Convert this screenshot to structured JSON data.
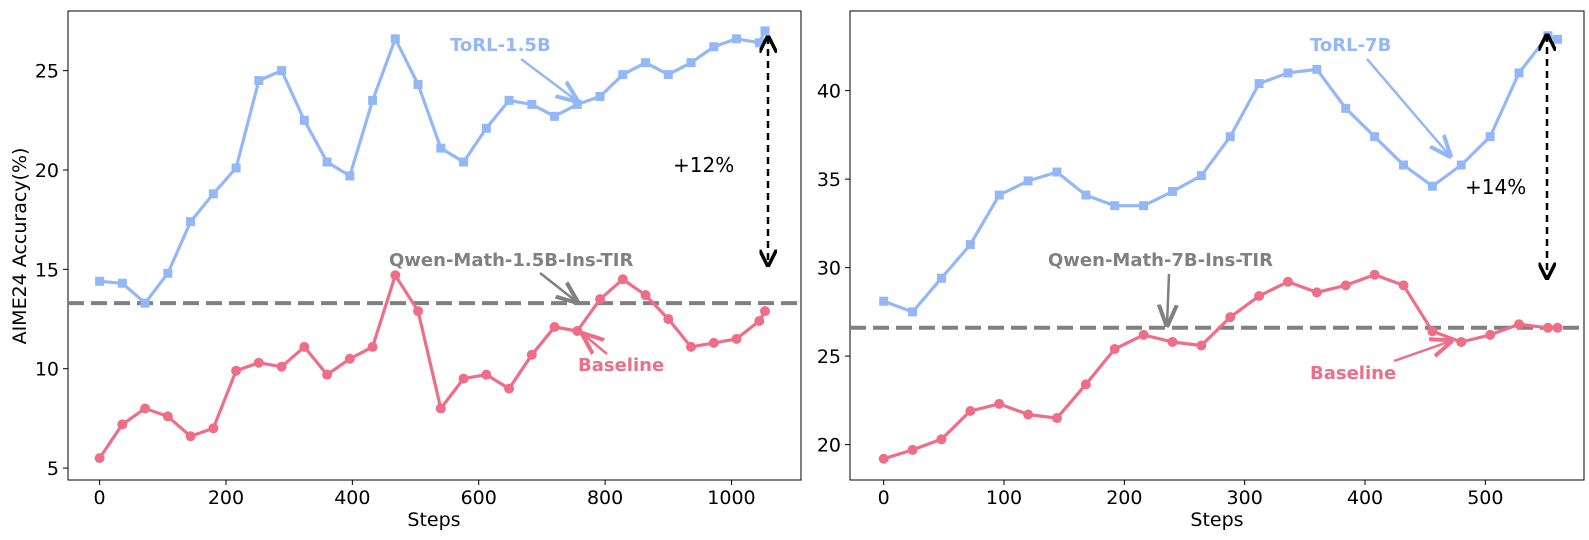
{
  "colors": {
    "torl": "#94b8f7",
    "baseline": "#ee6e88",
    "reference": "#808080",
    "arrow": "#000000"
  },
  "chart_data": [
    {
      "type": "line",
      "title": "",
      "xlabel": "Steps",
      "ylabel": "AIME24 Accuracy(%)",
      "xlim": [
        -50,
        1110
      ],
      "ylim": [
        4.4,
        28.0
      ],
      "xticks": [
        0,
        200,
        400,
        600,
        800,
        1000
      ],
      "yticks": [
        5,
        10,
        15,
        20,
        25
      ],
      "xtick_labels": [
        "0",
        "200",
        "400",
        "600",
        "800",
        "1000"
      ],
      "ytick_labels": [
        "5",
        "10",
        "15",
        "20",
        "25"
      ],
      "grid": false,
      "series": [
        {
          "name": "ToRL-1.5B",
          "marker": "square",
          "color": "#94b8f7",
          "x": [
            0,
            36,
            72,
            108,
            144,
            180,
            216,
            252,
            288,
            324,
            360,
            396,
            432,
            468,
            504,
            540,
            576,
            612,
            648,
            684,
            720,
            756,
            792,
            828,
            864,
            900,
            936,
            972,
            1008,
            1044,
            1053
          ],
          "y": [
            14.4,
            14.3,
            13.3,
            14.8,
            17.4,
            18.8,
            20.1,
            24.5,
            25.0,
            22.5,
            20.4,
            19.7,
            23.5,
            26.6,
            24.3,
            21.1,
            20.4,
            22.1,
            23.5,
            23.3,
            22.7,
            23.3,
            23.7,
            24.8,
            25.4,
            24.8,
            25.4,
            26.2,
            26.6,
            26.4,
            27.0
          ]
        },
        {
          "name": "Baseline",
          "marker": "circle",
          "color": "#ee6e88",
          "x": [
            0,
            36,
            72,
            108,
            144,
            180,
            216,
            252,
            288,
            324,
            360,
            396,
            432,
            468,
            504,
            540,
            576,
            612,
            648,
            684,
            720,
            756,
            792,
            828,
            864,
            900,
            936,
            972,
            1008,
            1044,
            1053
          ],
          "y": [
            5.5,
            7.2,
            8.0,
            7.6,
            6.6,
            7.0,
            9.9,
            10.3,
            10.1,
            11.1,
            9.7,
            10.5,
            11.1,
            14.7,
            12.9,
            8.0,
            9.5,
            9.7,
            9.0,
            10.7,
            12.1,
            11.9,
            13.5,
            14.5,
            13.7,
            12.5,
            11.1,
            11.3,
            11.5,
            12.4,
            12.9
          ]
        }
      ],
      "reference_line": {
        "label": "Qwen-Math-1.5B-Ins-TIR",
        "y": 13.3,
        "style": "dashed"
      },
      "annotations": [
        {
          "text": "ToRL-1.5B",
          "series": "ToRL-1.5B",
          "points_to_x": 756,
          "points_to_y": 23.3
        },
        {
          "text": "Baseline",
          "series": "Baseline",
          "points_to_x": 756,
          "points_to_y": 11.9
        },
        {
          "text": "Qwen-Math-1.5B-Ins-TIR",
          "points_to_x": 756,
          "points_to_y": 13.3
        },
        {
          "text": "+12%",
          "bracket_from": 15.0,
          "bracket_to": 27.0
        }
      ]
    },
    {
      "type": "line",
      "title": "",
      "xlabel": "Steps",
      "ylabel": "",
      "xlim": [
        -28,
        582
      ],
      "ylim": [
        18.0,
        44.5
      ],
      "xticks": [
        0,
        100,
        200,
        300,
        400,
        500
      ],
      "yticks": [
        20,
        25,
        30,
        35,
        40
      ],
      "xtick_labels": [
        "0",
        "100",
        "200",
        "300",
        "400",
        "500"
      ],
      "ytick_labels": [
        "20",
        "25",
        "30",
        "35",
        "40"
      ],
      "grid": false,
      "series": [
        {
          "name": "ToRL-7B",
          "marker": "square",
          "color": "#94b8f7",
          "x": [
            0,
            24,
            48,
            72,
            96,
            120,
            144,
            168,
            192,
            216,
            240,
            264,
            288,
            312,
            336,
            360,
            384,
            408,
            432,
            456,
            480,
            504,
            528,
            552,
            560
          ],
          "y": [
            28.1,
            27.5,
            29.4,
            31.3,
            34.1,
            34.9,
            35.4,
            34.1,
            33.5,
            33.5,
            34.3,
            35.2,
            37.4,
            40.4,
            41.0,
            41.2,
            39.0,
            37.4,
            35.8,
            34.6,
            35.8,
            37.4,
            41.0,
            43.1,
            42.9
          ]
        },
        {
          "name": "Baseline",
          "marker": "circle",
          "color": "#ee6e88",
          "x": [
            0,
            24,
            48,
            72,
            96,
            120,
            144,
            168,
            192,
            216,
            240,
            264,
            288,
            312,
            336,
            360,
            384,
            408,
            432,
            456,
            480,
            504,
            528,
            552,
            560
          ],
          "y": [
            19.2,
            19.7,
            20.3,
            21.9,
            22.3,
            21.7,
            21.5,
            23.4,
            25.4,
            26.2,
            25.8,
            25.6,
            27.2,
            28.4,
            29.2,
            28.6,
            29.0,
            29.6,
            29.0,
            26.4,
            25.8,
            26.2,
            26.8,
            26.6,
            26.6
          ]
        }
      ],
      "reference_line": {
        "label": "Qwen-Math-7B-Ins-TIR",
        "y": 26.6,
        "style": "dashed"
      },
      "annotations": [
        {
          "text": "ToRL-7B",
          "series": "ToRL-7B",
          "points_to_x": 480,
          "points_to_y": 35.8
        },
        {
          "text": "Baseline",
          "series": "Baseline",
          "points_to_x": 480,
          "points_to_y": 25.8
        },
        {
          "text": "Qwen-Math-7B-Ins-TIR",
          "points_to_x": 240,
          "points_to_y": 26.6
        },
        {
          "text": "+14%",
          "bracket_from": 29.0,
          "bracket_to": 42.9
        }
      ]
    }
  ]
}
